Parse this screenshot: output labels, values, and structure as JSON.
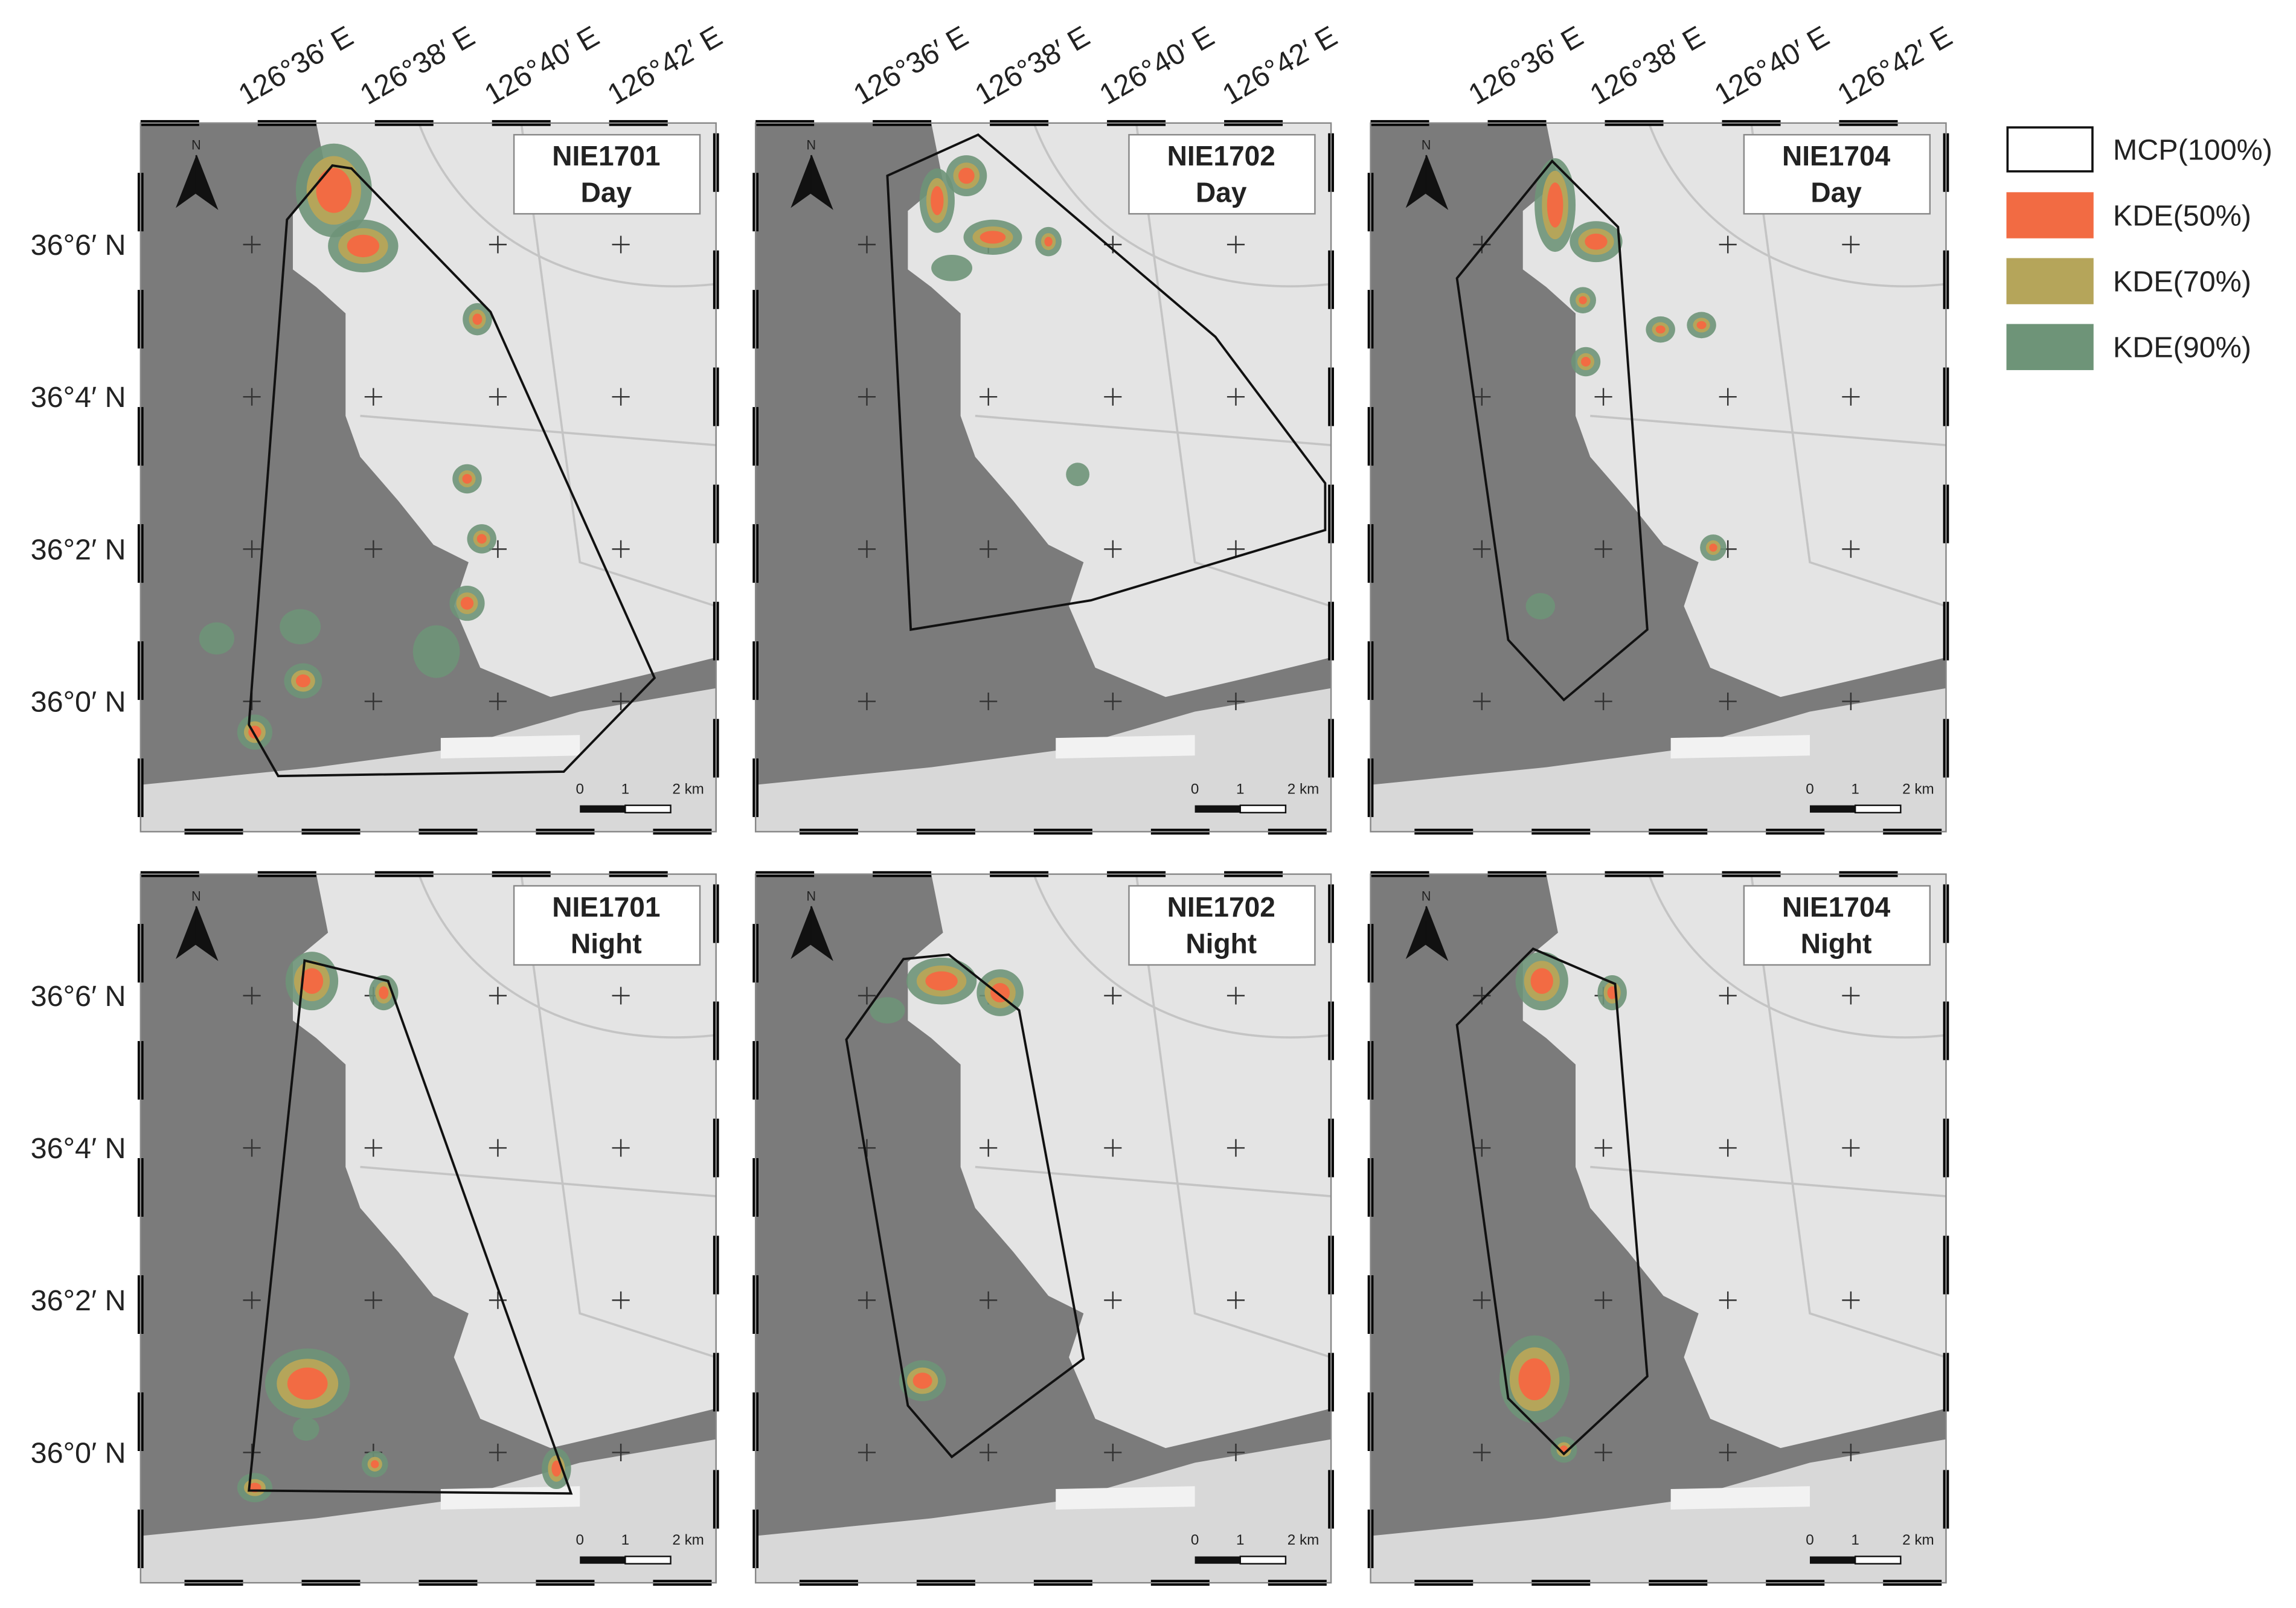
{
  "north_label": "N",
  "longitude_labels": [
    "126°36′ E",
    "126°38′ E",
    "126°40′ E",
    "126°42′ E"
  ],
  "latitude_labels": [
    "36°6′ N",
    "36°4′ N",
    "36°2′ N",
    "36°0′ N"
  ],
  "panels": [
    {
      "id": "NIE1701",
      "period": "Day"
    },
    {
      "id": "NIE1702",
      "period": "Day"
    },
    {
      "id": "NIE1704",
      "period": "Day"
    },
    {
      "id": "NIE1701",
      "period": "Night"
    },
    {
      "id": "NIE1702",
      "period": "Night"
    },
    {
      "id": "NIE1704",
      "period": "Night"
    }
  ],
  "scale_bar": {
    "labels": [
      "0",
      "1",
      "2 km"
    ]
  },
  "legend": {
    "items": [
      "MCP(100%)",
      "KDE(50%)",
      "KDE(70%)",
      "KDE(90%)"
    ]
  }
}
